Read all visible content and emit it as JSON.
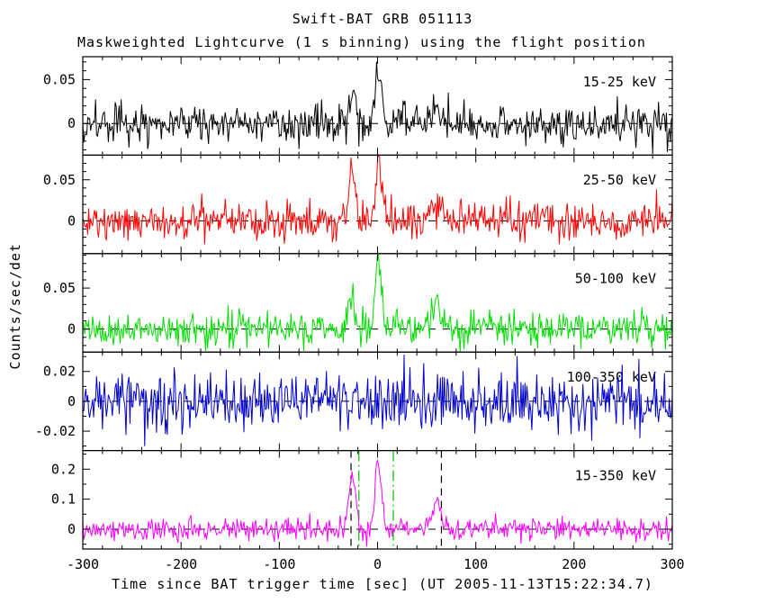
{
  "title": "Swift-BAT GRB 051113",
  "subtitle": "Maskweighted Lightcurve (1 s binning) using the flight position",
  "xlabel": "Time since BAT trigger time [sec] (UT 2005-11-13T15:22:34.7)",
  "ylabel": "Counts/sec/det",
  "chart_data": {
    "type": "line",
    "x_range": [
      -300,
      300
    ],
    "x_ticks": [
      -300,
      -200,
      -100,
      0,
      100,
      200,
      300
    ],
    "x_tick_labels": [
      "-300",
      "-200",
      "-100",
      "0",
      "100",
      "200",
      "300"
    ],
    "x_minor_step": 20,
    "binning_sec": 1,
    "background": "#ffffff",
    "frame_color": "#000000",
    "panels": [
      {
        "name": "15-25 keV",
        "color": "#000000",
        "ylim": [
          -0.036,
          0.076
        ],
        "yticks": [
          0,
          0.05
        ],
        "ytick_labels": [
          "0",
          "0.05"
        ],
        "y_minor_step": 0.01,
        "noise_sigma": 0.011,
        "zero_line": true,
        "peaks": [
          {
            "t": -27,
            "amp": 0.028,
            "width": 3
          },
          {
            "t": -23,
            "amp": 0.018,
            "width": 2
          },
          {
            "t": 0,
            "amp": 0.06,
            "width": 2.5
          },
          {
            "t": 4,
            "amp": 0.025,
            "width": 2
          },
          {
            "t": 60,
            "amp": 0.012,
            "width": 4
          }
        ]
      },
      {
        "name": "25-50 keV",
        "color": "#ff0000",
        "ylim": [
          -0.04,
          0.08
        ],
        "yticks": [
          0,
          0.05
        ],
        "ytick_labels": [
          "0",
          "0.05"
        ],
        "y_minor_step": 0.01,
        "noise_sigma": 0.011,
        "zero_line": true,
        "peaks": [
          {
            "t": -27,
            "amp": 0.05,
            "width": 3
          },
          {
            "t": -23,
            "amp": 0.028,
            "width": 2
          },
          {
            "t": 0,
            "amp": 0.062,
            "width": 2.5
          },
          {
            "t": 4,
            "amp": 0.03,
            "width": 2
          },
          {
            "t": 55,
            "amp": 0.022,
            "width": 4
          },
          {
            "t": 65,
            "amp": 0.015,
            "width": 3
          }
        ]
      },
      {
        "name": "50-100 keV",
        "color": "#00dd00",
        "ylim": [
          -0.028,
          0.092
        ],
        "yticks": [
          0,
          0.05
        ],
        "ytick_labels": [
          "0",
          "0.05"
        ],
        "y_minor_step": 0.01,
        "noise_sigma": 0.011,
        "zero_line": true,
        "peaks": [
          {
            "t": -27,
            "amp": 0.036,
            "width": 3
          },
          {
            "t": 0,
            "amp": 0.08,
            "width": 2.5
          },
          {
            "t": 4,
            "amp": 0.03,
            "width": 2
          },
          {
            "t": 60,
            "amp": 0.042,
            "width": 3.5
          }
        ]
      },
      {
        "name": "100-350 keV",
        "color": "#0000cc",
        "ylim": [
          -0.033,
          0.033
        ],
        "yticks": [
          -0.02,
          0,
          0.02
        ],
        "ytick_labels": [
          "-0.02",
          "0",
          "0.02"
        ],
        "y_minor_step": 0.01,
        "noise_sigma": 0.0095,
        "zero_line": true,
        "peaks": []
      },
      {
        "name": "15-350 keV",
        "color": "#ff00ff",
        "ylim": [
          -0.066,
          0.262
        ],
        "yticks": [
          0,
          0.1,
          0.2
        ],
        "ytick_labels": [
          "0",
          "0.1",
          "0.2"
        ],
        "y_minor_step": 0.05,
        "noise_sigma": 0.018,
        "zero_line": true,
        "peaks": [
          {
            "t": -27,
            "amp": 0.15,
            "width": 3
          },
          {
            "t": -23,
            "amp": 0.08,
            "width": 2
          },
          {
            "t": 0,
            "amp": 0.215,
            "width": 2.5
          },
          {
            "t": 4,
            "amp": 0.09,
            "width": 2
          },
          {
            "t": 55,
            "amp": 0.05,
            "width": 4
          },
          {
            "t": 62,
            "amp": 0.08,
            "width": 3
          }
        ]
      }
    ],
    "vlines": [
      {
        "panel": 4,
        "x": -27,
        "color": "#000000",
        "style": "dashed"
      },
      {
        "panel": 4,
        "x": 65,
        "color": "#000000",
        "style": "dashed"
      },
      {
        "panel": 4,
        "x": -19,
        "color": "#00bb00",
        "style": "dashdot"
      },
      {
        "panel": 4,
        "x": 16,
        "color": "#00bb00",
        "style": "dashdot"
      }
    ]
  }
}
